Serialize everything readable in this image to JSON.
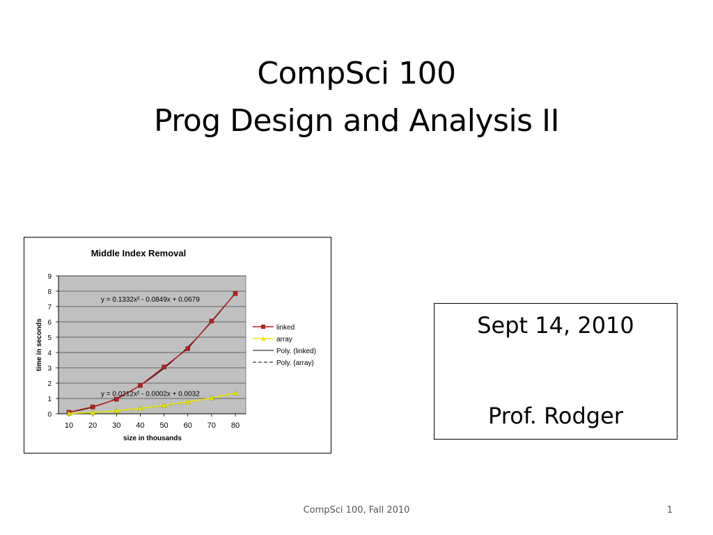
{
  "slide": {
    "title_line1": "CompSci 100",
    "title_line2": "Prog Design and Analysis II",
    "date": "Sept 14, 2010",
    "instructor": "Prof. Rodger",
    "footer_text": "CompSci 100, Fall 2010",
    "page_number": "1"
  },
  "colors": {
    "plot_bg": "#c0c0c0",
    "linked": "#b22222",
    "array": "#e8e800",
    "trend": "#000000"
  },
  "chart_data": {
    "type": "line",
    "title": "Middle Index Removal",
    "xlabel": "size in thousands",
    "ylabel": "time in seconds",
    "x": [
      10,
      20,
      30,
      40,
      50,
      60,
      70,
      80
    ],
    "ylim": [
      0,
      9
    ],
    "yticks": [
      0,
      1,
      2,
      3,
      4,
      5,
      6,
      7,
      8,
      9
    ],
    "grid": true,
    "legend_position": "right",
    "series": [
      {
        "name": "linked",
        "values": [
          0.1,
          0.45,
          0.95,
          1.85,
          3.05,
          4.25,
          6.05,
          7.85
        ],
        "marker": "square"
      },
      {
        "name": "array",
        "values": [
          0.02,
          0.08,
          0.2,
          0.35,
          0.55,
          0.78,
          1.03,
          1.35
        ],
        "marker": "triangle"
      }
    ],
    "trendlines": [
      {
        "name": "Poly. (linked)",
        "equation": "y = 0.1332x² - 0.0849x + 0.0679",
        "coefficients": [
          0.1332,
          -0.0849,
          0.0679
        ],
        "style": "solid"
      },
      {
        "name": "Poly. (array)",
        "equation": "y = 0.0212x² - 0.0002x + 0.0032",
        "coefficients": [
          0.0212,
          -0.0002,
          0.0032
        ],
        "style": "dashed"
      }
    ]
  }
}
